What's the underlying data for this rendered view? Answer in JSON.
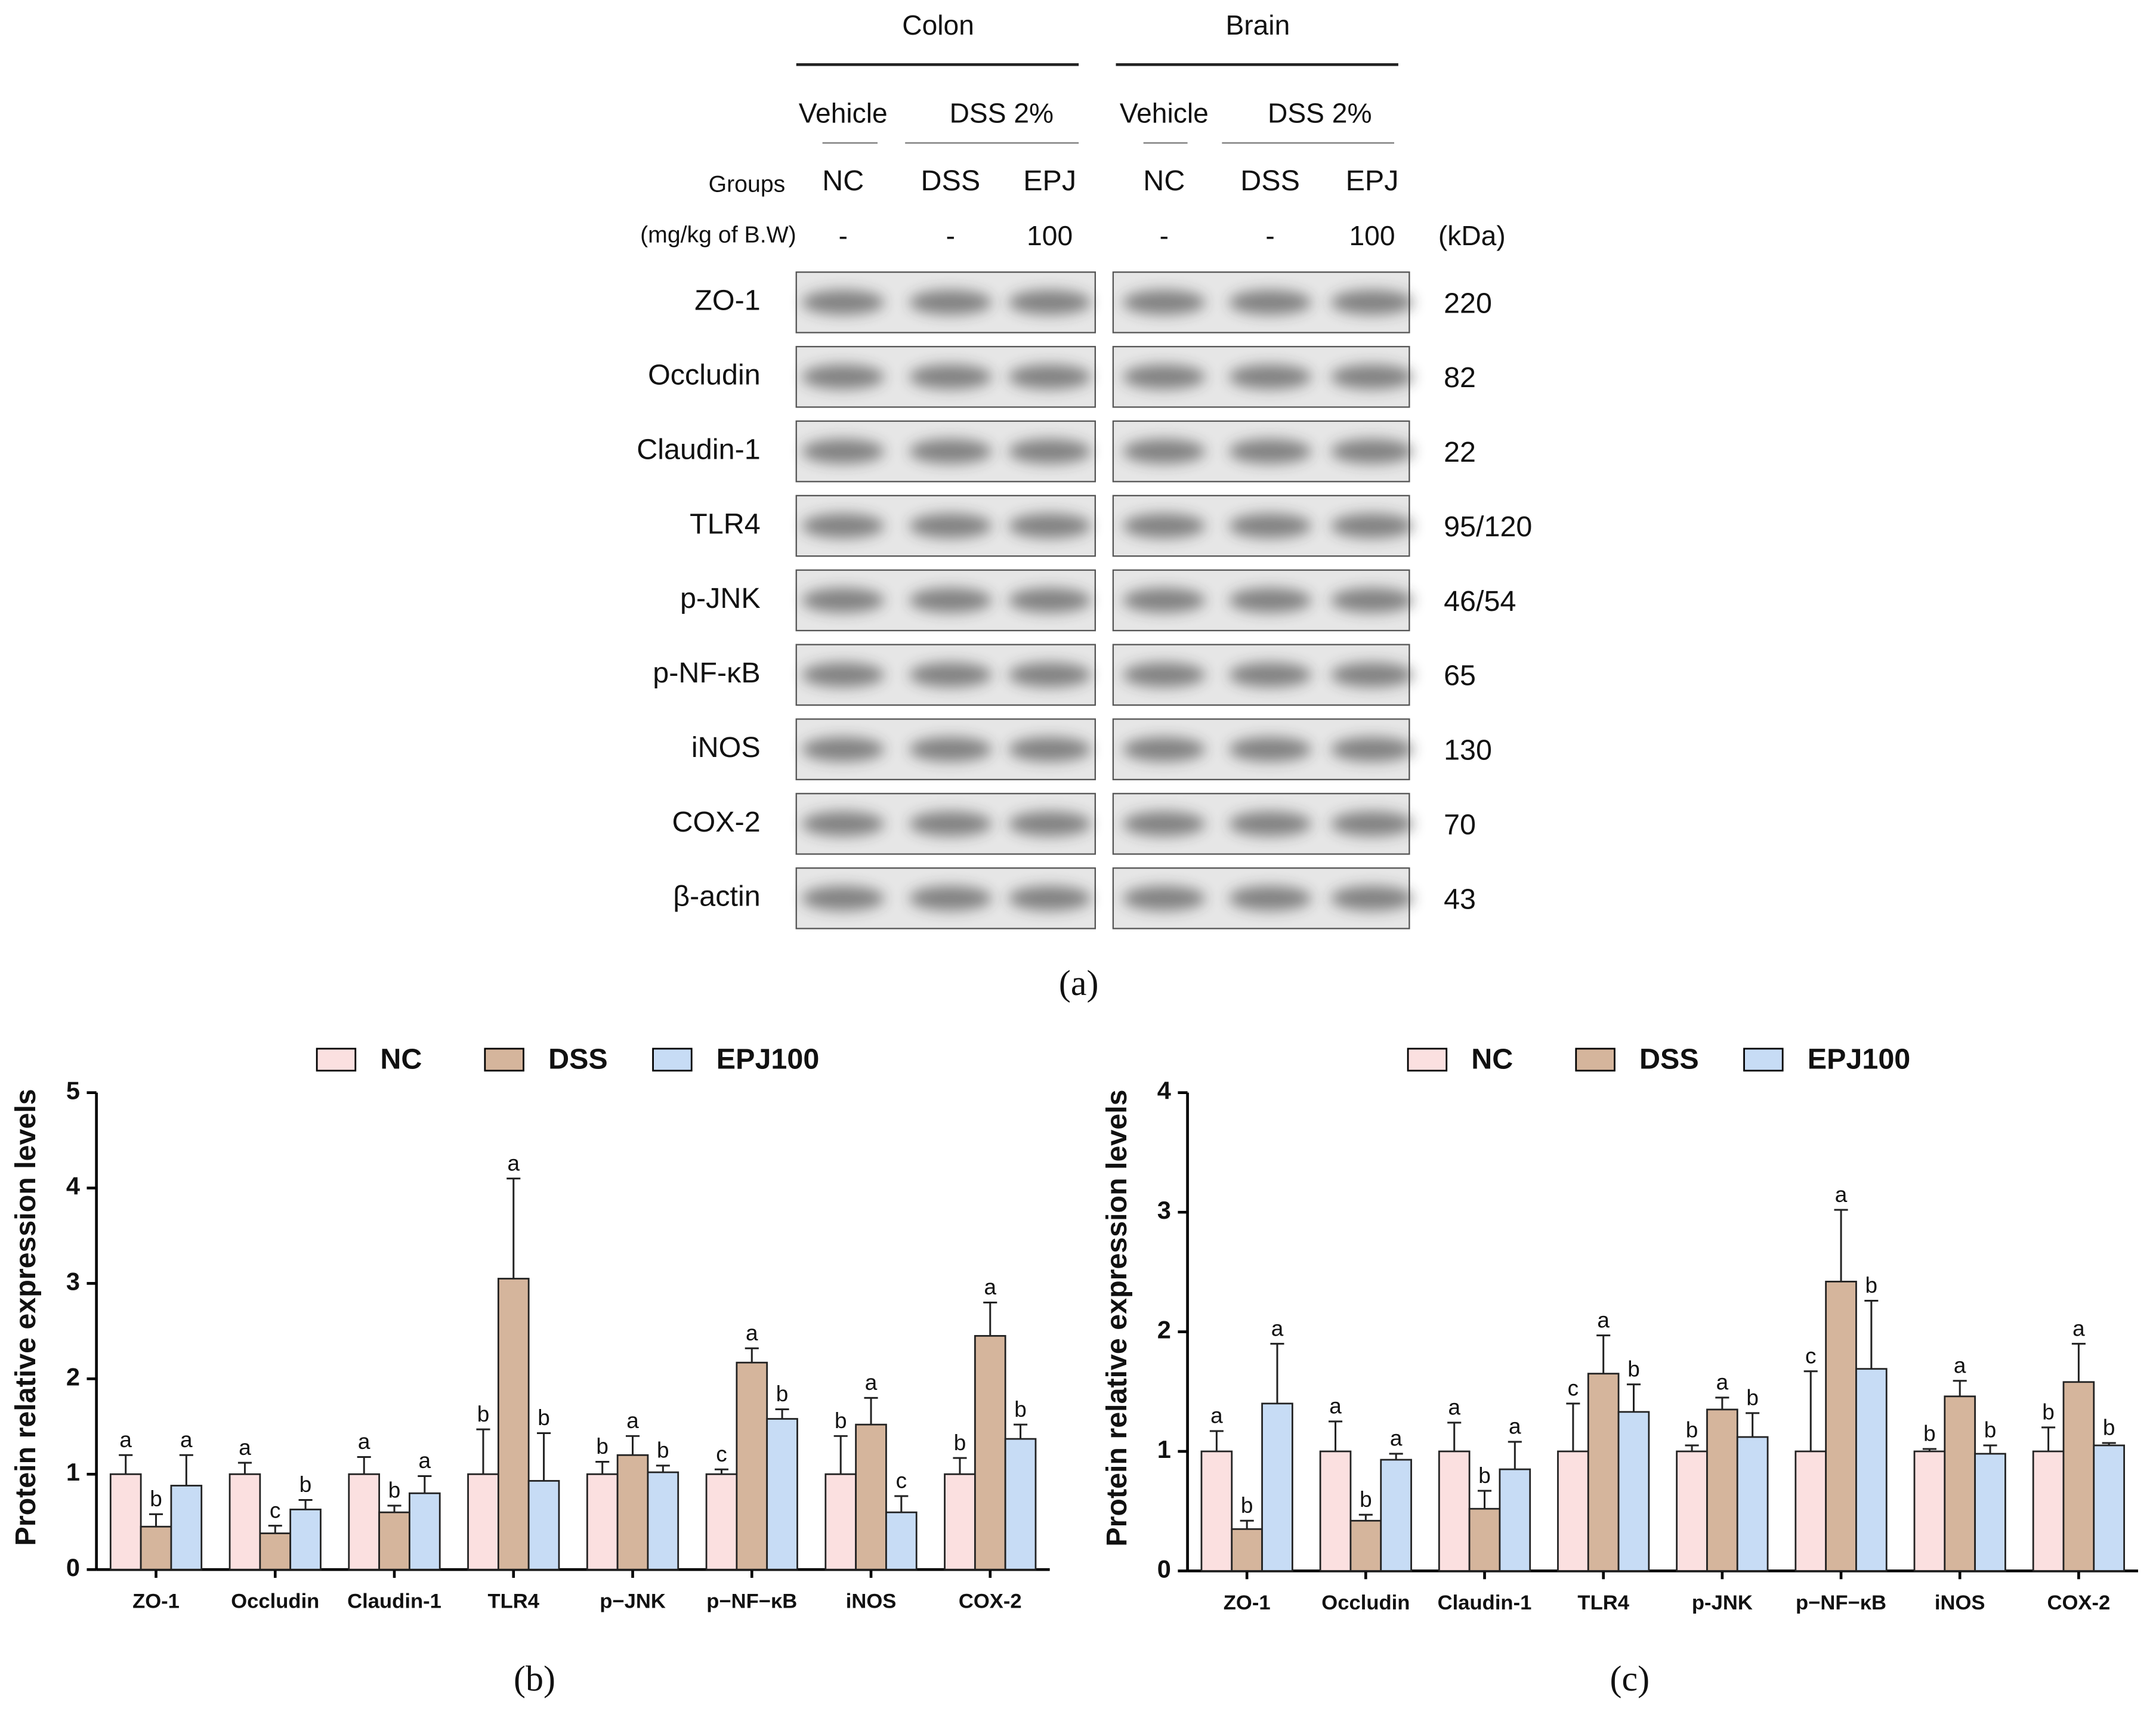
{
  "blot": {
    "tissues": [
      "Colon",
      "Brain"
    ],
    "treatments": [
      [
        "Vehicle",
        "DSS 2%"
      ],
      [
        "Vehicle",
        "DSS 2%"
      ]
    ],
    "groups_label": "Groups",
    "dose_label": "(mg/kg of B.W)",
    "lanes": [
      [
        "NC",
        "DSS",
        "EPJ"
      ],
      [
        "NC",
        "DSS",
        "EPJ"
      ]
    ],
    "doses": [
      [
        "-",
        "-",
        "100"
      ],
      [
        "-",
        "-",
        "100"
      ]
    ],
    "kda_label": "(kDa)",
    "proteins": [
      "ZO-1",
      "Occludin",
      "Claudin-1",
      "TLR4",
      "p-JNK",
      "p-NF-κB",
      "iNOS",
      "COX-2",
      "β-actin"
    ],
    "kda": [
      "220",
      "82",
      "22",
      "95/120",
      "46/54",
      "65",
      "130",
      "70",
      "43"
    ],
    "panel_label": "(a)"
  },
  "chart_data": [
    {
      "type": "bar",
      "panel_label": "(b)",
      "y_label": "Protein relative expression levels",
      "categories": [
        "ZO-1",
        "Occludin",
        "Claudin-1",
        "TLR4",
        "p−JNK",
        "p−NF−κB",
        "iNOS",
        "COX-2"
      ],
      "series": [
        {
          "name": "NC",
          "color": "#fbe0e0",
          "values": [
            1.0,
            1.0,
            1.0,
            1.0,
            1.0,
            1.0,
            1.0,
            1.0
          ],
          "errors": [
            0.2,
            0.12,
            0.18,
            0.47,
            0.13,
            0.05,
            0.4,
            0.17
          ],
          "labels": [
            "a",
            "a",
            "a",
            "b",
            "b",
            "c",
            "b",
            "b"
          ]
        },
        {
          "name": "DSS",
          "color": "#d5b59c",
          "values": [
            0.45,
            0.38,
            0.6,
            3.05,
            1.2,
            2.17,
            1.52,
            2.45
          ],
          "errors": [
            0.13,
            0.08,
            0.07,
            1.05,
            0.2,
            0.15,
            0.28,
            0.35
          ],
          "labels": [
            "b",
            "c",
            "b",
            "a",
            "a",
            "a",
            "a",
            "a"
          ]
        },
        {
          "name": "EPJ100",
          "color": "#c7dcf5",
          "values": [
            0.88,
            0.63,
            0.8,
            0.93,
            1.02,
            1.58,
            0.6,
            1.37
          ],
          "errors": [
            0.32,
            0.1,
            0.18,
            0.5,
            0.07,
            0.1,
            0.17,
            0.15
          ],
          "labels": [
            "a",
            "b",
            "a",
            "b",
            "b",
            "b",
            "c",
            "b"
          ]
        }
      ],
      "ylim": [
        0,
        5
      ],
      "yticks": [
        0,
        1,
        2,
        3,
        4,
        5
      ],
      "legend": "top"
    },
    {
      "type": "bar",
      "panel_label": "(c)",
      "y_label": "Protein relative expression levels",
      "categories": [
        "ZO-1",
        "Occludin",
        "Claudin-1",
        "TLR4",
        "p-JNK",
        "p−NF−κB",
        "iNOS",
        "COX-2"
      ],
      "series": [
        {
          "name": "NC",
          "color": "#fbe0e0",
          "values": [
            1.0,
            1.0,
            1.0,
            1.0,
            1.0,
            1.0,
            1.0,
            1.0
          ],
          "errors": [
            0.17,
            0.25,
            0.24,
            0.4,
            0.05,
            0.67,
            0.02,
            0.2
          ],
          "labels": [
            "a",
            "a",
            "a",
            "c",
            "b",
            "c",
            "b",
            "b"
          ]
        },
        {
          "name": "DSS",
          "color": "#d5b59c",
          "values": [
            0.35,
            0.42,
            0.52,
            1.65,
            1.35,
            2.42,
            1.46,
            1.58
          ],
          "errors": [
            0.07,
            0.05,
            0.15,
            0.32,
            0.1,
            0.6,
            0.13,
            0.32
          ],
          "labels": [
            "b",
            "b",
            "b",
            "a",
            "a",
            "a",
            "a",
            "a"
          ]
        },
        {
          "name": "EPJ100",
          "color": "#c7dcf5",
          "values": [
            1.4,
            0.93,
            0.85,
            1.33,
            1.12,
            1.69,
            0.98,
            1.05
          ],
          "errors": [
            0.5,
            0.05,
            0.23,
            0.23,
            0.2,
            0.57,
            0.07,
            0.02
          ],
          "labels": [
            "a",
            "a",
            "a",
            "b",
            "b",
            "b",
            "b",
            "b"
          ]
        }
      ],
      "ylim": [
        0,
        4
      ],
      "yticks": [
        0,
        1,
        2,
        3,
        4
      ],
      "legend": "top"
    }
  ]
}
